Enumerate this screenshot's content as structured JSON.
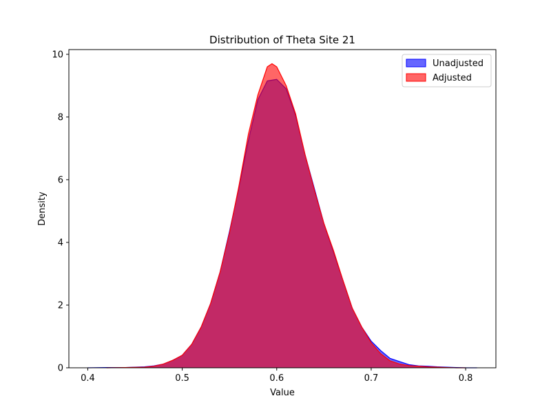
{
  "chart_data": {
    "type": "area",
    "title": "Distribution of Theta Site 21",
    "xlabel": "Value",
    "ylabel": "Density",
    "xlim": [
      0.38,
      0.832
    ],
    "ylim": [
      0,
      10.15
    ],
    "x_ticks": [
      0.4,
      0.5,
      0.6,
      0.7,
      0.8
    ],
    "x_tick_labels": [
      "0.4",
      "0.5",
      "0.6",
      "0.7",
      "0.8"
    ],
    "y_ticks": [
      0,
      2,
      4,
      6,
      8,
      10
    ],
    "y_tick_labels": [
      "0",
      "2",
      "4",
      "6",
      "8",
      "10"
    ],
    "grid": false,
    "legend_position": "top-right",
    "series": [
      {
        "name": "Unadjusted",
        "color": "#0000ff",
        "fill_opacity": 0.6,
        "points": [
          [
            0.4,
            0.0
          ],
          [
            0.42,
            0.01
          ],
          [
            0.44,
            0.01
          ],
          [
            0.46,
            0.03
          ],
          [
            0.47,
            0.06
          ],
          [
            0.48,
            0.12
          ],
          [
            0.49,
            0.24
          ],
          [
            0.5,
            0.4
          ],
          [
            0.51,
            0.75
          ],
          [
            0.52,
            1.3
          ],
          [
            0.53,
            2.05
          ],
          [
            0.54,
            3.05
          ],
          [
            0.55,
            4.35
          ],
          [
            0.56,
            5.75
          ],
          [
            0.57,
            7.25
          ],
          [
            0.58,
            8.55
          ],
          [
            0.59,
            9.15
          ],
          [
            0.6,
            9.2
          ],
          [
            0.61,
            8.9
          ],
          [
            0.62,
            8.05
          ],
          [
            0.63,
            6.8
          ],
          [
            0.64,
            5.7
          ],
          [
            0.65,
            4.6
          ],
          [
            0.66,
            3.7
          ],
          [
            0.67,
            2.8
          ],
          [
            0.68,
            1.9
          ],
          [
            0.69,
            1.3
          ],
          [
            0.7,
            0.85
          ],
          [
            0.71,
            0.55
          ],
          [
            0.72,
            0.3
          ],
          [
            0.73,
            0.2
          ],
          [
            0.74,
            0.1
          ],
          [
            0.75,
            0.06
          ],
          [
            0.76,
            0.05
          ],
          [
            0.77,
            0.03
          ],
          [
            0.78,
            0.02
          ],
          [
            0.79,
            0.01
          ],
          [
            0.8,
            0.0
          ],
          [
            0.812,
            0.0
          ]
        ]
      },
      {
        "name": "Adjusted",
        "color": "#ff0000",
        "fill_opacity": 0.6,
        "points": [
          [
            0.42,
            0.0
          ],
          [
            0.44,
            0.01
          ],
          [
            0.46,
            0.02
          ],
          [
            0.47,
            0.05
          ],
          [
            0.48,
            0.12
          ],
          [
            0.49,
            0.24
          ],
          [
            0.5,
            0.4
          ],
          [
            0.51,
            0.75
          ],
          [
            0.52,
            1.3
          ],
          [
            0.53,
            2.05
          ],
          [
            0.54,
            3.05
          ],
          [
            0.55,
            4.3
          ],
          [
            0.56,
            5.8
          ],
          [
            0.57,
            7.45
          ],
          [
            0.58,
            8.7
          ],
          [
            0.59,
            9.6
          ],
          [
            0.595,
            9.7
          ],
          [
            0.6,
            9.6
          ],
          [
            0.61,
            9.0
          ],
          [
            0.62,
            8.1
          ],
          [
            0.63,
            6.8
          ],
          [
            0.64,
            5.65
          ],
          [
            0.65,
            4.6
          ],
          [
            0.66,
            3.75
          ],
          [
            0.67,
            2.8
          ],
          [
            0.68,
            1.9
          ],
          [
            0.69,
            1.3
          ],
          [
            0.7,
            0.8
          ],
          [
            0.71,
            0.45
          ],
          [
            0.72,
            0.22
          ],
          [
            0.73,
            0.12
          ],
          [
            0.74,
            0.07
          ],
          [
            0.75,
            0.05
          ],
          [
            0.76,
            0.03
          ],
          [
            0.77,
            0.02
          ],
          [
            0.78,
            0.01
          ],
          [
            0.79,
            0.0
          ],
          [
            0.8,
            0.0
          ]
        ]
      }
    ]
  }
}
